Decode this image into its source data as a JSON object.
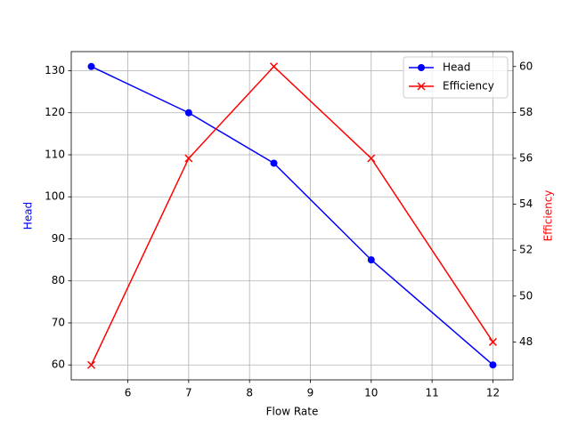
{
  "chart_data": {
    "type": "line",
    "xlabel": "Flow Rate",
    "ylabel": "Head",
    "y2label": "Efficiency",
    "x": [
      5.4,
      7,
      8.4,
      10,
      12
    ],
    "series": [
      {
        "name": "Head",
        "color": "#0000ff",
        "marker": "o",
        "values": [
          131,
          120,
          108,
          85,
          60
        ]
      },
      {
        "name": "Efficiency",
        "color": "#ff0000",
        "marker": "x",
        "axis": "y2",
        "values": [
          47,
          56,
          60,
          56,
          48
        ]
      }
    ],
    "xlim": [
      5.07,
      12.33
    ],
    "xticks": [
      6,
      7,
      8,
      9,
      10,
      11,
      12
    ],
    "ylim": [
      56.45,
      134.55
    ],
    "yticks": [
      60,
      70,
      80,
      90,
      100,
      110,
      120,
      130
    ],
    "y2lim": [
      46.35,
      60.65
    ],
    "y2ticks": [
      48,
      50,
      52,
      54,
      56,
      58,
      60
    ],
    "grid": true,
    "legend": "upper right"
  }
}
